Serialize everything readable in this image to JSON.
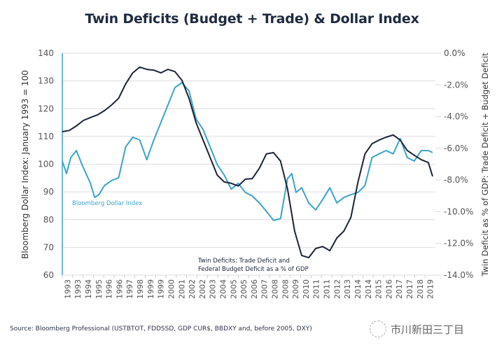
{
  "title": "Twin Deficits (Budget + Trade) & Dollar Index",
  "source": "Source: Bloomberg Professional (USTBTOT, FDDSSD, GDP CUR$, BBDXY and, before 2005, DXY)",
  "watermark": "市川新田三丁目",
  "colors": {
    "dollar": "#3ba3cc",
    "deficit": "#1a2438",
    "axis": "#3ba3cc",
    "grid": "#dddddd",
    "text": "#333333"
  },
  "chart_data": {
    "type": "line",
    "title": "Twin Deficits (Budget + Trade) & Dollar Index",
    "ylabel_left": "Bloomberg Dollar Index: January 1993 = 100",
    "ylabel_right": "Twin Deficit as % of GDP: Trade Deficit + Budget Deficit",
    "ylim_left": [
      60,
      140
    ],
    "ylim_right": [
      -14.0,
      0.0
    ],
    "yticks_left": [
      "140",
      "130",
      "120",
      "110",
      "100",
      "90",
      "80",
      "70",
      "60"
    ],
    "yticks_right": [
      "0.0%",
      "-2.0%",
      "-4.0%",
      "-6.0%",
      "-8.0%",
      "-10.0%",
      "-12.0%",
      "-14.0%"
    ],
    "xlim": [
      1993.0,
      2019.5
    ],
    "xtick_labels": [
      "1993",
      "1993",
      "1994",
      "1995",
      "1996",
      "1996",
      "1997",
      "1998",
      "1999",
      "1999",
      "2000",
      "2001",
      "2002",
      "2002",
      "2003",
      "2004",
      "2005",
      "2005",
      "2006",
      "2007",
      "2008",
      "2008",
      "2009",
      "2010",
      "2011",
      "2011",
      "2012",
      "2013",
      "2014",
      "2014",
      "2015",
      "2016",
      "2017",
      "2017",
      "2018",
      "2019"
    ],
    "grid": true,
    "annotations": [
      {
        "text": "Bloomberg Dollar Index",
        "series": "dollar"
      },
      {
        "text": "Twin Deficits: Trade Deficit and",
        "series": "deficit"
      },
      {
        "text": "Federal Budget Deficit as a % of GDP",
        "series": "deficit"
      }
    ],
    "series": [
      {
        "name": "Bloomberg Dollar Index",
        "axis": "left",
        "x": [
          1993.0,
          1993.3,
          1993.6,
          1994.0,
          1994.5,
          1995.0,
          1995.3,
          1995.6,
          1996.0,
          1996.5,
          1997.0,
          1997.5,
          1998.0,
          1998.5,
          1999.0,
          1999.5,
          2000.0,
          2000.5,
          2001.0,
          2001.5,
          2002.0,
          2002.5,
          2003.0,
          2003.5,
          2004.0,
          2004.5,
          2005.0,
          2005.5,
          2006.0,
          2006.5,
          2007.0,
          2007.5,
          2008.0,
          2008.5,
          2009.0,
          2009.3,
          2009.6,
          2010.0,
          2010.5,
          2011.0,
          2011.5,
          2012.0,
          2012.5,
          2013.0,
          2013.5,
          2014.0,
          2014.5,
          2015.0,
          2015.5,
          2016.0,
          2016.5,
          2017.0,
          2017.5,
          2018.0,
          2018.5,
          2019.0,
          2019.3
        ],
        "values": [
          101.1,
          96.6,
          102.4,
          104.9,
          98.6,
          93.1,
          88.0,
          89.0,
          92.3,
          94.1,
          95.1,
          106.2,
          109.7,
          108.7,
          101.6,
          108.7,
          115.0,
          121.3,
          127.6,
          129.4,
          126.4,
          116.3,
          112.5,
          106.2,
          99.9,
          96.1,
          91.0,
          93.1,
          89.8,
          88.5,
          86.0,
          83.0,
          79.7,
          80.4,
          94.8,
          96.6,
          89.8,
          91.5,
          86.0,
          83.5,
          87.3,
          91.5,
          86.0,
          88.0,
          89.0,
          89.8,
          92.3,
          102.4,
          103.7,
          104.9,
          103.7,
          109.2,
          102.4,
          101.1,
          104.9,
          104.9,
          104.2
        ]
      },
      {
        "name": "Twin Deficits: Trade Deficit and Federal Budget Deficit as a % of GDP",
        "axis": "right",
        "x": [
          1993.0,
          1993.5,
          1994.0,
          1994.5,
          1995.0,
          1995.5,
          1996.0,
          1996.5,
          1997.0,
          1997.5,
          1998.0,
          1998.5,
          1999.0,
          1999.5,
          2000.0,
          2000.5,
          2001.0,
          2001.5,
          2002.0,
          2002.5,
          2003.0,
          2003.5,
          2004.0,
          2004.5,
          2005.0,
          2005.5,
          2006.0,
          2006.5,
          2007.0,
          2007.5,
          2008.0,
          2008.5,
          2009.0,
          2009.5,
          2010.0,
          2010.5,
          2011.0,
          2011.5,
          2012.0,
          2012.5,
          2013.0,
          2013.5,
          2014.0,
          2014.5,
          2015.0,
          2015.5,
          2016.0,
          2016.5,
          2017.0,
          2017.5,
          2018.0,
          2018.5,
          2019.0,
          2019.3
        ],
        "values": [
          -4.95,
          -4.87,
          -4.59,
          -4.24,
          -4.06,
          -3.89,
          -3.62,
          -3.27,
          -2.84,
          -1.94,
          -1.24,
          -0.88,
          -1.02,
          -1.07,
          -1.24,
          -1.02,
          -1.16,
          -1.72,
          -2.84,
          -4.38,
          -5.48,
          -6.58,
          -7.68,
          -8.12,
          -8.21,
          -8.38,
          -7.95,
          -7.91,
          -7.25,
          -6.35,
          -6.27,
          -6.81,
          -8.58,
          -11.22,
          -12.76,
          -12.9,
          -12.32,
          -12.2,
          -12.46,
          -11.66,
          -11.22,
          -10.35,
          -8.12,
          -6.35,
          -5.71,
          -5.48,
          -5.3,
          -5.16,
          -5.48,
          -6.14,
          -6.44,
          -6.72,
          -6.9,
          -7.77
        ]
      }
    ]
  }
}
